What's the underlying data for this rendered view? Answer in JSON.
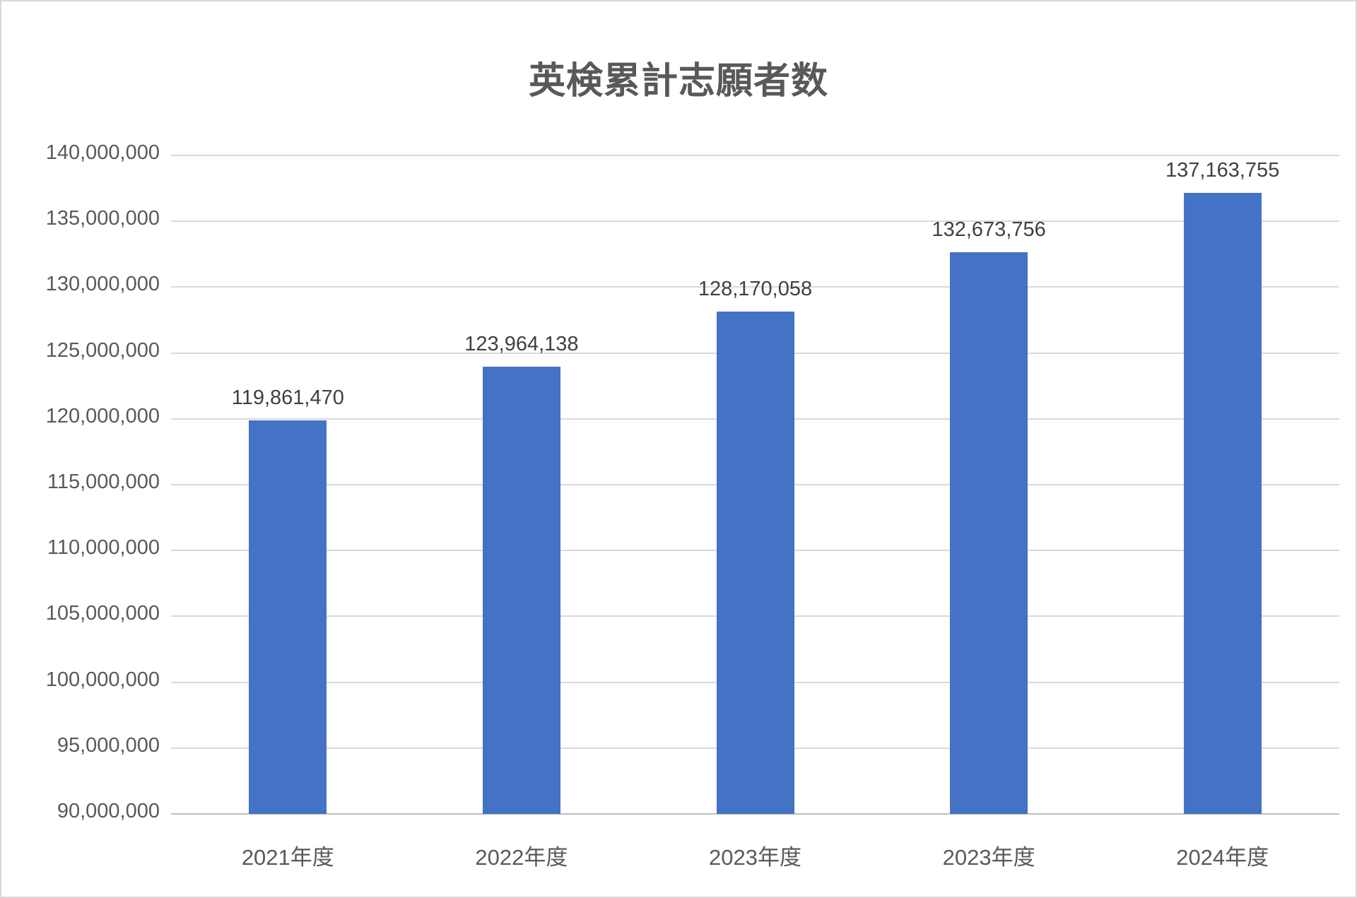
{
  "chart_data": {
    "type": "bar",
    "title": "英検累計志願者数",
    "categories": [
      "2021年度",
      "2022年度",
      "2023年度",
      "2023年度",
      "2024年度"
    ],
    "values": [
      119861470,
      123964138,
      128170058,
      132673756,
      137163755
    ],
    "value_labels": [
      "119,861,470",
      "123,964,138",
      "128,170,058",
      "132,673,756",
      "137,163,755"
    ],
    "xlabel": "",
    "ylabel": "",
    "ylim": [
      90000000,
      140000000
    ],
    "ytick_interval": 5000000,
    "ytick_labels": [
      "90,000,000",
      "95,000,000",
      "100,000,000",
      "105,000,000",
      "110,000,000",
      "115,000,000",
      "120,000,000",
      "125,000,000",
      "130,000,000",
      "135,000,000",
      "140,000,000"
    ],
    "grid": "horizontal",
    "legend": "none",
    "colors": {
      "bar": "#4472c4",
      "gridline": "#d9d9d9",
      "axis_line": "#bfbfbf",
      "tick_text": "#595959",
      "value_label_text": "#404040",
      "title_text": "#595959"
    }
  }
}
